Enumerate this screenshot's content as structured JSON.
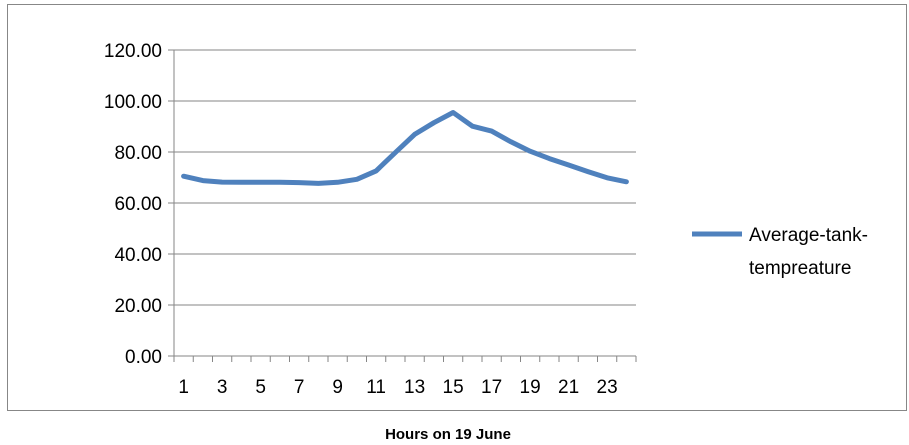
{
  "chart_data": {
    "type": "line",
    "title": "",
    "xlabel": "Hours on 19 June",
    "ylabel": "",
    "x": [
      1,
      2,
      3,
      4,
      5,
      6,
      7,
      8,
      9,
      10,
      11,
      12,
      13,
      14,
      15,
      16,
      17,
      18,
      19,
      20,
      21,
      22,
      23,
      24
    ],
    "x_tick_labels": [
      "1",
      "3",
      "5",
      "7",
      "9",
      "11",
      "13",
      "15",
      "17",
      "19",
      "21",
      "23"
    ],
    "y_tick_labels": [
      "0.00",
      "20.00",
      "40.00",
      "60.00",
      "80.00",
      "100.00",
      "120.00"
    ],
    "ylim": [
      0,
      120
    ],
    "grid": true,
    "legend_position": "right",
    "series": [
      {
        "name": "Average-tank-tempreature",
        "name_lines": [
          "Average-tank-",
          "tempreature"
        ],
        "color": "#4F81BD",
        "values": [
          70.5,
          68.8,
          68.2,
          68.1,
          68.1,
          68.1,
          68.0,
          67.7,
          68.1,
          69.3,
          72.6,
          79.8,
          86.9,
          91.5,
          95.5,
          90.1,
          88.2,
          84.0,
          80.3,
          77.4,
          74.9,
          72.3,
          69.9,
          68.3
        ]
      }
    ]
  }
}
